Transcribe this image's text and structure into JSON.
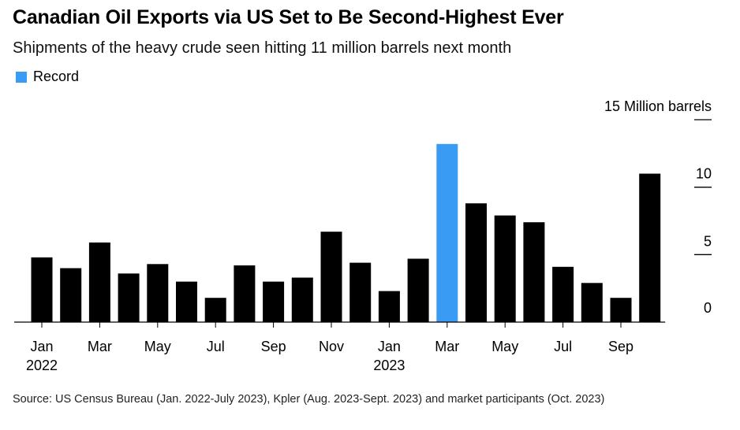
{
  "title": "Canadian Oil Exports via US Set to Be Second-Highest Ever",
  "subtitle": "Shipments of the heavy crude seen hitting 11 million barrels next month",
  "legend": {
    "label": "Record",
    "color": "#3a9bf4"
  },
  "source": "Source: US Census Bureau (Jan. 2022-July 2023), Kpler (Aug. 2023-Sept. 2023) and market participants (Oct. 2023)",
  "colors": {
    "bar": "#000000",
    "record": "#3a9bf4"
  },
  "chart_data": {
    "type": "bar",
    "categories": [
      "Jan 2022",
      "Feb 2022",
      "Mar 2022",
      "Apr 2022",
      "May 2022",
      "Jun 2022",
      "Jul 2022",
      "Aug 2022",
      "Sep 2022",
      "Oct 2022",
      "Nov 2022",
      "Dec 2022",
      "Jan 2023",
      "Feb 2023",
      "Mar 2023",
      "Apr 2023",
      "May 2023",
      "Jun 2023",
      "Jul 2023",
      "Aug 2023",
      "Sep 2023",
      "Oct 2023"
    ],
    "values": [
      4.8,
      4.0,
      5.9,
      3.6,
      4.3,
      3.0,
      1.8,
      4.2,
      3.0,
      3.3,
      6.7,
      4.4,
      2.3,
      4.7,
      13.2,
      8.8,
      7.9,
      7.4,
      4.1,
      2.9,
      1.8,
      11.0
    ],
    "record_index": 14,
    "ylim": [
      0,
      15
    ],
    "y_ticks": [
      {
        "value": 0,
        "label": "0"
      },
      {
        "value": 5,
        "label": "5"
      },
      {
        "value": 10,
        "label": "10"
      },
      {
        "value": 15,
        "label": "15 Million barrels"
      }
    ],
    "x_ticks": [
      {
        "index": 0,
        "month": "Jan",
        "year": "2022"
      },
      {
        "index": 2,
        "month": "Mar",
        "year": ""
      },
      {
        "index": 4,
        "month": "May",
        "year": ""
      },
      {
        "index": 6,
        "month": "Jul",
        "year": ""
      },
      {
        "index": 8,
        "month": "Sep",
        "year": ""
      },
      {
        "index": 10,
        "month": "Nov",
        "year": ""
      },
      {
        "index": 12,
        "month": "Jan",
        "year": "2023"
      },
      {
        "index": 14,
        "month": "Mar",
        "year": ""
      },
      {
        "index": 16,
        "month": "May",
        "year": ""
      },
      {
        "index": 18,
        "month": "Jul",
        "year": ""
      },
      {
        "index": 20,
        "month": "Sep",
        "year": ""
      }
    ],
    "grid": false,
    "legend_position": "top-left"
  }
}
